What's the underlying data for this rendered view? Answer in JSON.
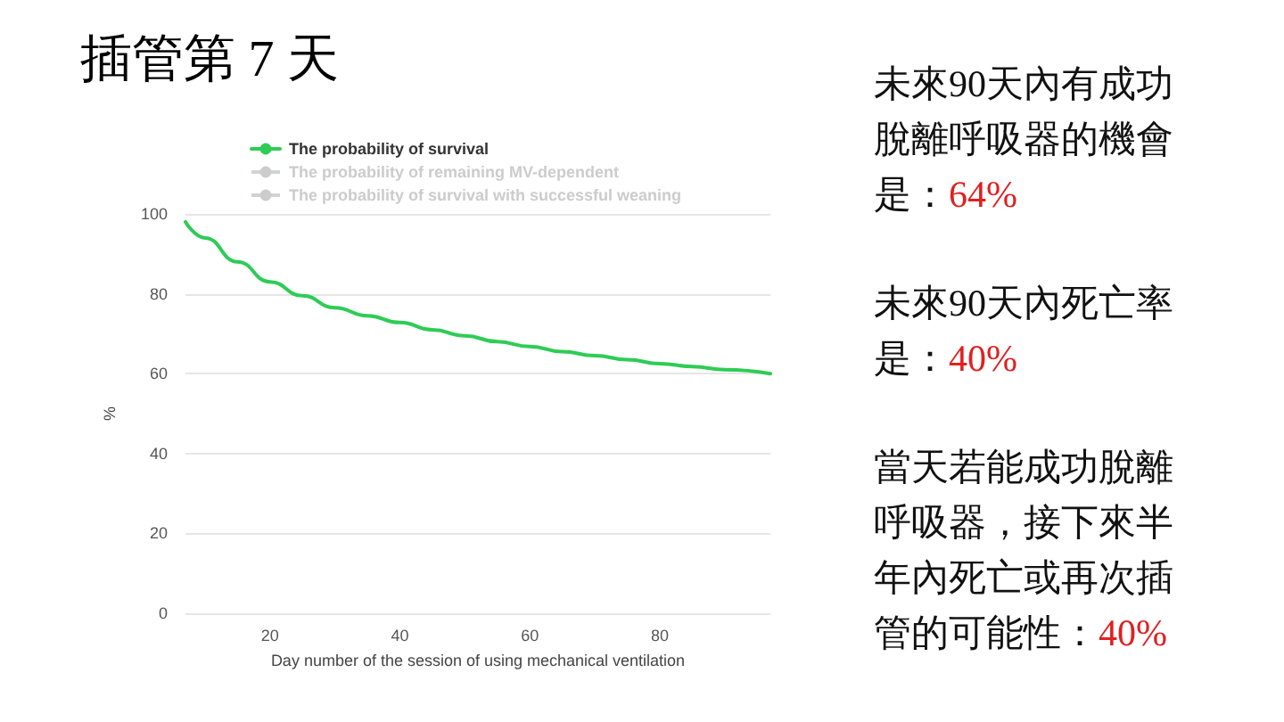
{
  "chart_data": {
    "type": "line",
    "title": "插管第 7 天",
    "xlabel": "Day number of the session of using mechanical ventilation",
    "ylabel": "%",
    "x": [
      7,
      10,
      15,
      20,
      25,
      30,
      35,
      40,
      45,
      50,
      55,
      60,
      65,
      70,
      75,
      80,
      85,
      90,
      97
    ],
    "series": [
      {
        "name": "The probability of survival",
        "color": "#2ecc55",
        "values": [
          98,
          94,
          88,
          83,
          79.5,
          76.5,
          74.5,
          72.8,
          71,
          69.5,
          68,
          66.8,
          65.5,
          64.5,
          63.5,
          62.5,
          61.8,
          61,
          60
        ]
      },
      {
        "name": "The probability of remaining MV-dependent",
        "color": "#cccccc",
        "values": [
          null,
          null,
          null,
          null,
          null,
          null,
          null,
          null,
          null,
          null,
          null,
          null,
          null,
          null,
          null,
          null,
          null,
          null,
          null
        ]
      },
      {
        "name": "The probability of survival with successful weaning",
        "color": "#cccccc",
        "values": [
          null,
          null,
          null,
          null,
          null,
          null,
          null,
          null,
          null,
          null,
          null,
          null,
          null,
          null,
          null,
          null,
          null,
          null,
          null
        ]
      }
    ],
    "xlim": [
      7,
      97
    ],
    "xticks": [
      20,
      40,
      60,
      80
    ],
    "ylim": [
      0,
      100
    ],
    "yticks": [
      0,
      20,
      40,
      60,
      80,
      100
    ],
    "grid": "y",
    "legend": "top left",
    "marker": "none",
    "line_style": "solid",
    "annotations": [
      "未來90天內有成功脫離呼吸器的機會是：64%",
      "未來90天內死亡率是：40%",
      "當天若能成功脫離呼吸器，接下來半年內死亡或再次插管的可能性：40%"
    ]
  }
}
